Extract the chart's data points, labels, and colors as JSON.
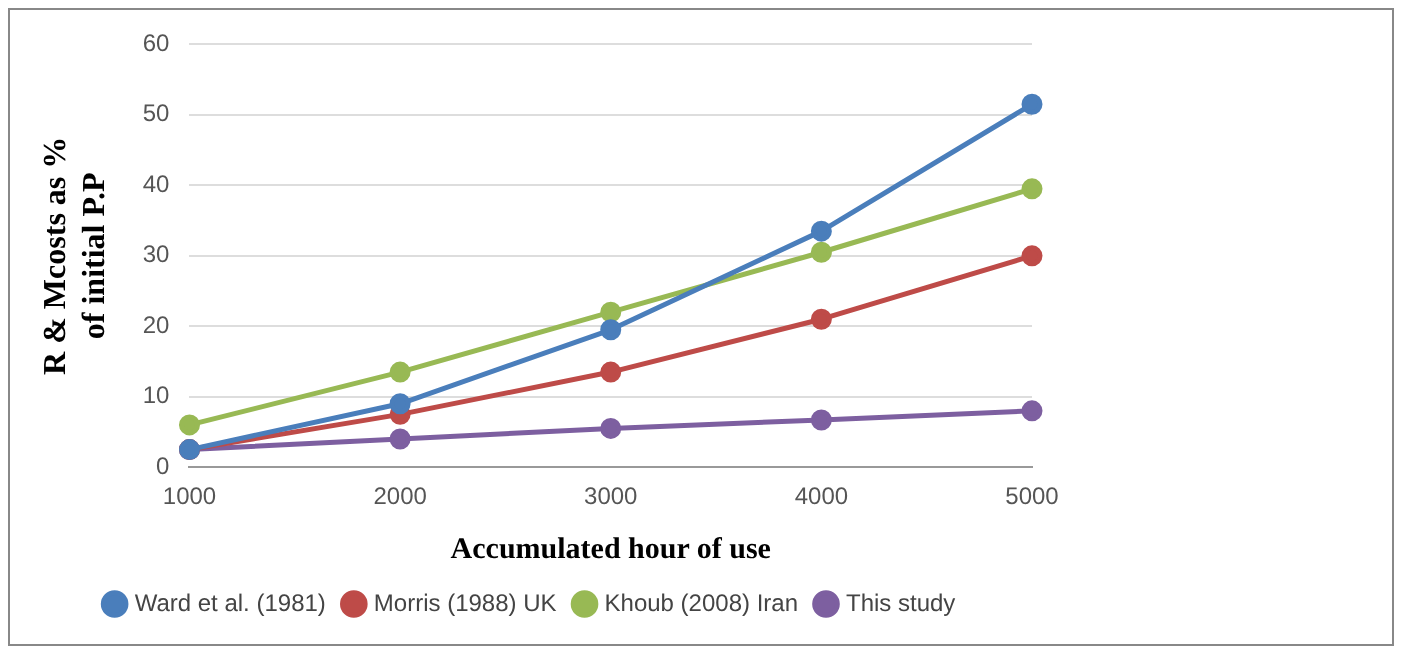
{
  "chart_data": {
    "type": "line",
    "xlabel": "Accumulated hour of use",
    "ylabel": "R & Mcosts as % of initial P.P",
    "categories": [
      "1000",
      "2000",
      "3000",
      "4000",
      "5000"
    ],
    "series": [
      {
        "name": "Ward et al. (1981)",
        "color": "#4a7ebb",
        "values": [
          2.5,
          9,
          19.5,
          33.5,
          51.5
        ]
      },
      {
        "name": "Morris (1988) UK",
        "color": "#be4b48",
        "values": [
          2.5,
          7.5,
          13.5,
          21,
          30
        ]
      },
      {
        "name": "Khoub (2008) Iran",
        "color": "#98b954",
        "values": [
          6,
          13.5,
          22,
          30.5,
          39.5
        ]
      },
      {
        "name": "This study",
        "color": "#7d5fa0",
        "values": [
          2.5,
          4,
          5.5,
          6.7,
          8
        ]
      }
    ],
    "ylim": [
      0,
      60
    ],
    "yticks": [
      0,
      10,
      20,
      30,
      40,
      50,
      60
    ],
    "grid": "y",
    "legend": "bottom",
    "marker": "circle",
    "line_style": "solid"
  }
}
